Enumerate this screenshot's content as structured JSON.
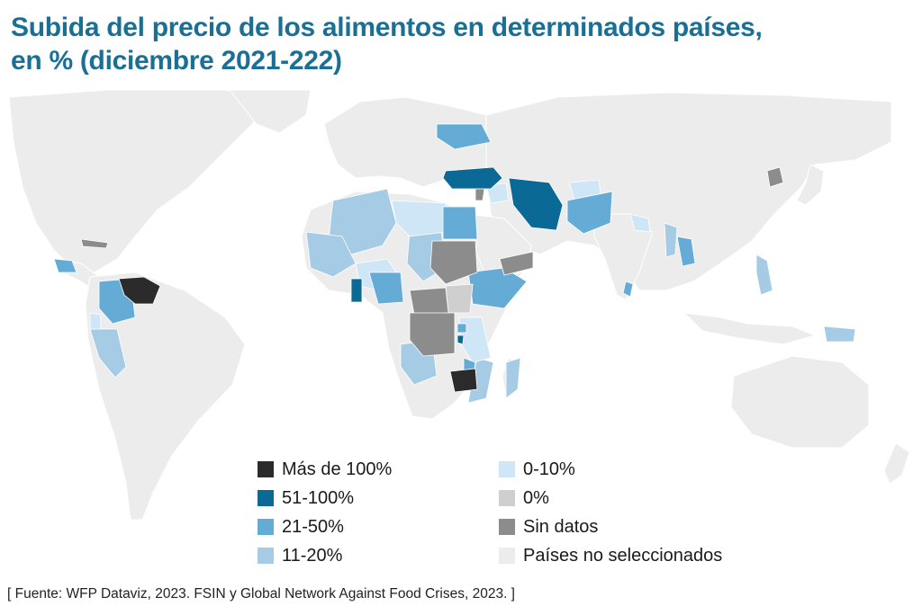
{
  "title": {
    "line1": "Subida del precio de los alimentos en determinados países,",
    "line2": "en % (diciembre 2021-222)"
  },
  "colors": {
    "mas_de_100": "#2b2b2b",
    "c51_100": "#0b6a95",
    "c21_50": "#64acd6",
    "c11_20": "#a6cbe5",
    "c0_10": "#cfe6f6",
    "c0": "#cfcfcf",
    "sin_datos": "#8c8c8c",
    "no_seleccionados": "#ececec"
  },
  "legend": {
    "items": [
      {
        "label": "Más de 100%",
        "color": "#2b2b2b"
      },
      {
        "label": "51-100%",
        "color": "#0b6a95"
      },
      {
        "label": "21-50%",
        "color": "#64acd6"
      },
      {
        "label": "11-20%",
        "color": "#a6cbe5"
      },
      {
        "label": "0-10%",
        "color": "#cfe6f6"
      },
      {
        "label": "0%",
        "color": "#cfcfcf"
      },
      {
        "label": "Sin datos",
        "color": "#8c8c8c"
      },
      {
        "label": "Países no seleccionados",
        "color": "#ececec"
      }
    ]
  },
  "source": "[ Fuente: WFP Dataviz, 2023. FSIN y Global Network Against Food Crises, 2023. ]"
}
